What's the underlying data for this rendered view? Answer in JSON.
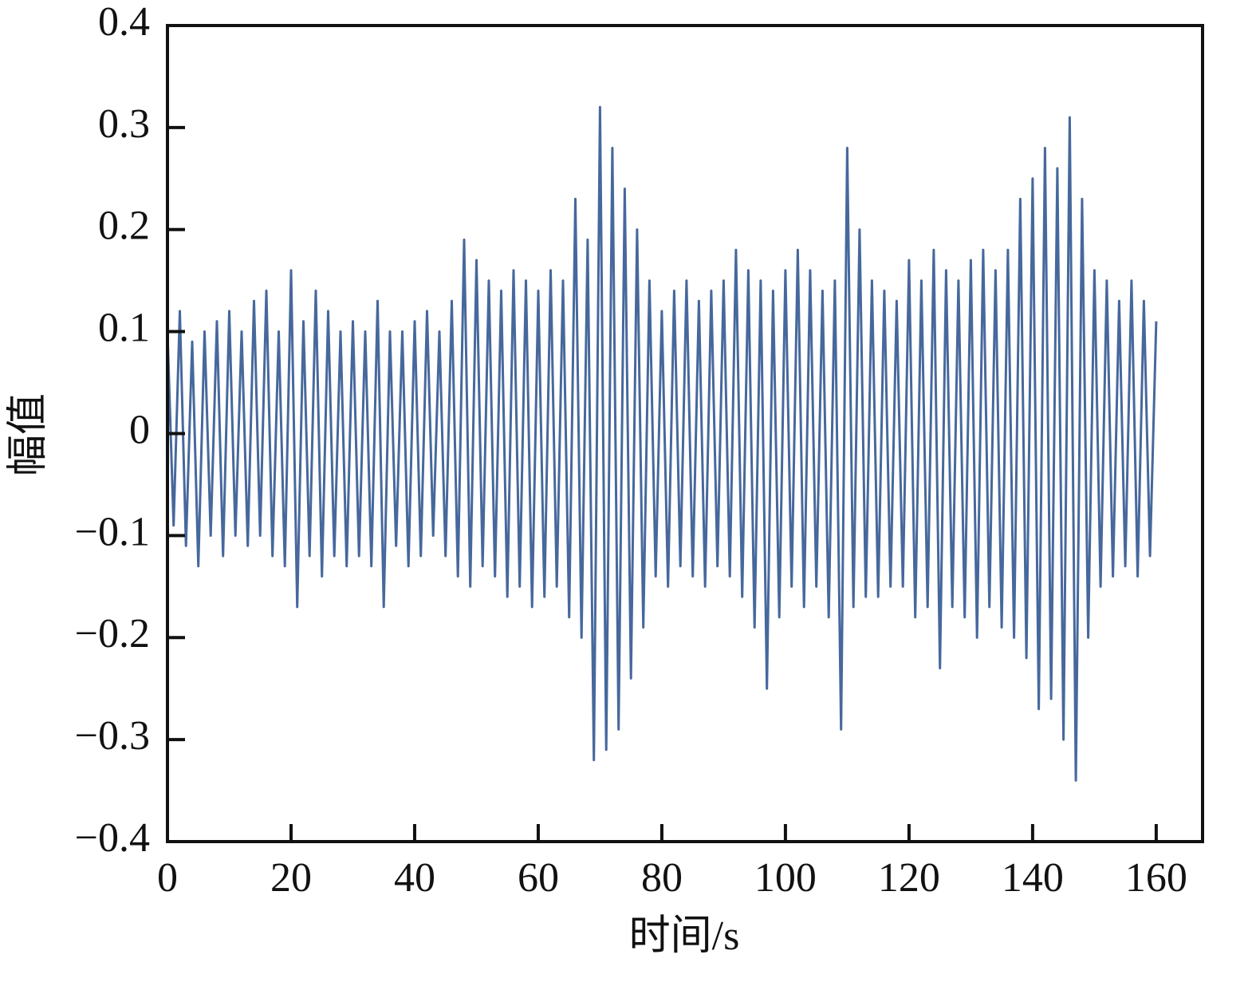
{
  "chart_data": {
    "type": "line",
    "xlabel": "时间/s",
    "ylabel": "幅值",
    "xlim": [
      0,
      167.5
    ],
    "ylim": [
      -0.4,
      0.4
    ],
    "xticks": [
      0,
      20,
      40,
      60,
      80,
      100,
      120,
      140,
      160
    ],
    "yticks": [
      {
        "value": -0.4,
        "label": "−0.4"
      },
      {
        "value": -0.3,
        "label": "−0.3"
      },
      {
        "value": -0.2,
        "label": "−0.2"
      },
      {
        "value": -0.1,
        "label": "−0.1"
      },
      0,
      0.1,
      0.2,
      0.3,
      0.4
    ],
    "series": [
      {
        "color": "#46689c",
        "x": [
          0,
          1,
          2,
          3,
          4,
          5,
          6,
          7,
          8,
          9,
          10,
          11,
          12,
          13,
          14,
          15,
          16,
          17,
          18,
          19,
          20,
          21,
          22,
          23,
          24,
          25,
          26,
          27,
          28,
          29,
          30,
          31,
          32,
          33,
          34,
          35,
          36,
          37,
          38,
          39,
          40,
          41,
          42,
          43,
          44,
          45,
          46,
          47,
          48,
          49,
          50,
          51,
          52,
          53,
          54,
          55,
          56,
          57,
          58,
          59,
          60,
          61,
          62,
          63,
          64,
          65,
          66,
          67,
          68,
          69,
          70,
          71,
          72,
          73,
          74,
          75,
          76,
          77,
          78,
          79,
          80,
          81,
          82,
          83,
          84,
          85,
          86,
          87,
          88,
          89,
          90,
          91,
          92,
          93,
          94,
          95,
          96,
          97,
          98,
          99,
          100,
          101,
          102,
          103,
          104,
          105,
          106,
          107,
          108,
          109,
          110,
          111,
          112,
          113,
          114,
          115,
          116,
          117,
          118,
          119,
          120,
          121,
          122,
          123,
          124,
          125,
          126,
          127,
          128,
          129,
          130,
          131,
          132,
          133,
          134,
          135,
          136,
          137,
          138,
          139,
          140,
          141,
          142,
          143,
          144,
          145,
          146,
          147,
          148,
          149,
          150,
          151,
          152,
          153,
          154,
          155,
          156,
          157,
          158,
          159,
          160
        ],
        "values": [
          0.1,
          -0.09,
          0.12,
          -0.11,
          0.09,
          -0.13,
          0.1,
          -0.1,
          0.11,
          -0.12,
          0.12,
          -0.1,
          0.1,
          -0.11,
          0.13,
          -0.1,
          0.14,
          -0.12,
          0.1,
          -0.13,
          0.16,
          -0.17,
          0.11,
          -0.12,
          0.14,
          -0.14,
          0.12,
          -0.12,
          0.1,
          -0.13,
          0.11,
          -0.12,
          0.1,
          -0.13,
          0.13,
          -0.17,
          0.1,
          -0.11,
          0.1,
          -0.13,
          0.11,
          -0.12,
          0.12,
          -0.1,
          0.1,
          -0.12,
          0.13,
          -0.14,
          0.19,
          -0.15,
          0.17,
          -0.13,
          0.15,
          -0.14,
          0.14,
          -0.16,
          0.16,
          -0.15,
          0.15,
          -0.17,
          0.14,
          -0.16,
          0.16,
          -0.15,
          0.15,
          -0.18,
          0.23,
          -0.2,
          0.19,
          -0.32,
          0.32,
          -0.31,
          0.28,
          -0.29,
          0.24,
          -0.24,
          0.2,
          -0.19,
          0.15,
          -0.14,
          0.12,
          -0.15,
          0.14,
          -0.13,
          0.15,
          -0.14,
          0.13,
          -0.15,
          0.14,
          -0.13,
          0.15,
          -0.14,
          0.18,
          -0.16,
          0.16,
          -0.19,
          0.15,
          -0.25,
          0.14,
          -0.18,
          0.16,
          -0.15,
          0.18,
          -0.17,
          0.16,
          -0.15,
          0.14,
          -0.18,
          0.15,
          -0.29,
          0.28,
          -0.17,
          0.2,
          -0.16,
          0.15,
          -0.16,
          0.14,
          -0.15,
          0.13,
          -0.15,
          0.17,
          -0.18,
          0.15,
          -0.17,
          0.18,
          -0.23,
          0.16,
          -0.17,
          0.15,
          -0.18,
          0.17,
          -0.2,
          0.18,
          -0.17,
          0.16,
          -0.19,
          0.18,
          -0.2,
          0.23,
          -0.22,
          0.25,
          -0.27,
          0.28,
          -0.26,
          0.26,
          -0.3,
          0.31,
          -0.34,
          0.23,
          -0.2,
          0.16,
          -0.15,
          0.15,
          -0.14,
          0.13,
          -0.13,
          0.15,
          -0.14,
          0.13,
          -0.12,
          0.11
        ]
      }
    ]
  }
}
